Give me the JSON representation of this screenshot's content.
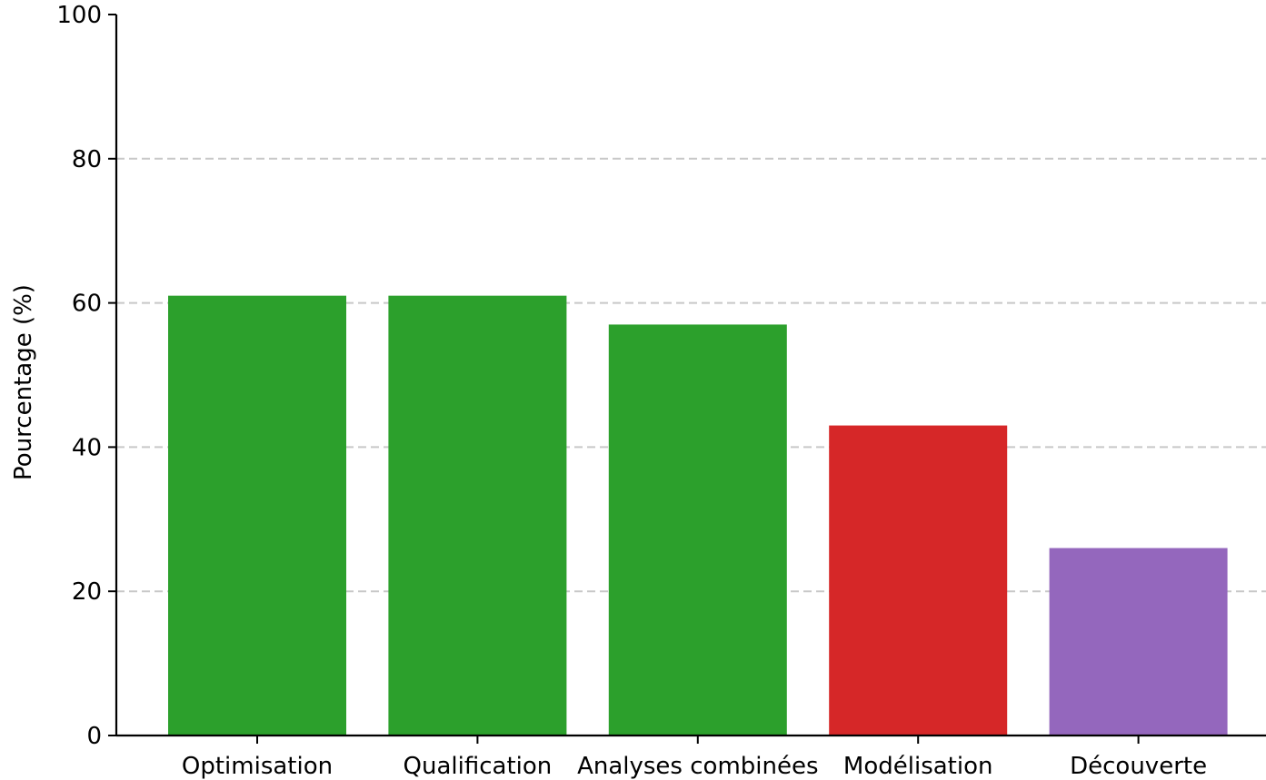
{
  "chart_data": {
    "type": "bar",
    "title": "",
    "xlabel": "",
    "ylabel": "Pourcentage (%)",
    "ylim": [
      0,
      100
    ],
    "yticks": [
      0,
      20,
      40,
      60,
      80,
      100
    ],
    "grid": "y-dashed",
    "categories": [
      "Optimisation",
      "Qualification",
      "Analyses combinées",
      "Modélisation",
      "Découverte"
    ],
    "values": [
      61,
      61,
      57,
      43,
      26
    ],
    "colors": [
      "#2ca02c",
      "#2ca02c",
      "#2ca02c",
      "#d62728",
      "#9467bd"
    ]
  }
}
